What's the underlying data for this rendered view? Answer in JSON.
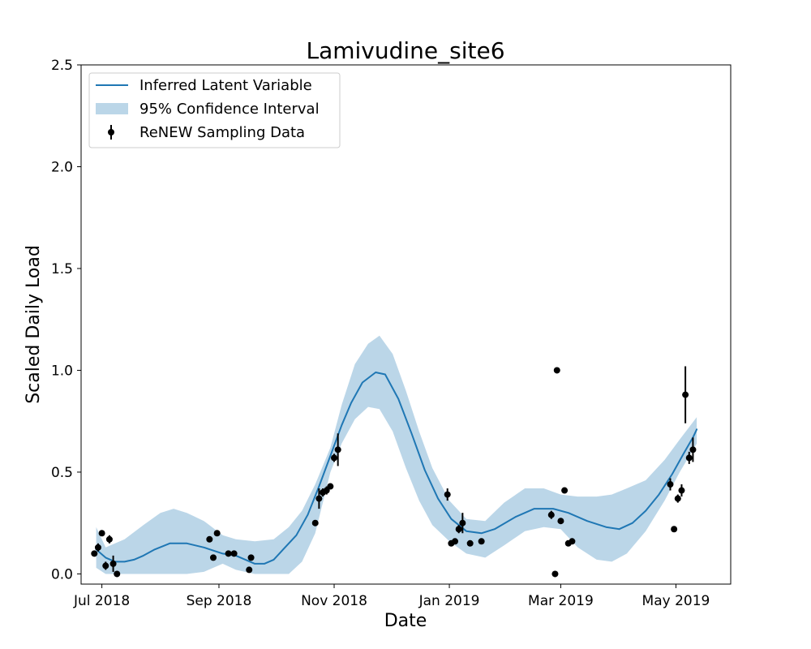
{
  "chart_data": {
    "type": "line",
    "title": "Lamivudine_site6",
    "xlabel": "Date",
    "ylabel": "Scaled Daily Load",
    "xlim": [
      "2018-06-20",
      "2019-05-30"
    ],
    "ylim": [
      -0.05,
      2.5
    ],
    "x_ticks": [
      {
        "date": "2018-07-01",
        "label": "Jul 2018"
      },
      {
        "date": "2018-09-01",
        "label": "Sep 2018"
      },
      {
        "date": "2018-11-01",
        "label": "Nov 2018"
      },
      {
        "date": "2019-01-01",
        "label": "Jan 2019"
      },
      {
        "date": "2019-03-01",
        "label": "Mar 2019"
      },
      {
        "date": "2019-05-01",
        "label": "May 2019"
      }
    ],
    "y_ticks": [
      {
        "value": 0.0,
        "label": "0.0"
      },
      {
        "value": 0.5,
        "label": "0.5"
      },
      {
        "value": 1.0,
        "label": "1.0"
      },
      {
        "value": 1.5,
        "label": "1.5"
      },
      {
        "value": 2.0,
        "label": "2.0"
      },
      {
        "value": 2.5,
        "label": "2.5"
      }
    ],
    "grid": false,
    "legend": {
      "position": "top-left",
      "entries": [
        {
          "label": "Inferred Latent Variable",
          "kind": "line"
        },
        {
          "label": "95% Confidence Interval",
          "kind": "band"
        },
        {
          "label": "ReNEW Sampling Data",
          "kind": "errorbar"
        }
      ]
    },
    "colors": {
      "line": "#1f77b4",
      "band": "#1f77b4",
      "points": "#000000"
    },
    "series": [
      {
        "name": "Inferred Latent Variable",
        "kind": "line",
        "points": [
          [
            "2018-06-28",
            0.12
          ],
          [
            "2018-07-03",
            0.08
          ],
          [
            "2018-07-08",
            0.06
          ],
          [
            "2018-07-13",
            0.06
          ],
          [
            "2018-07-18",
            0.07
          ],
          [
            "2018-07-23",
            0.09
          ],
          [
            "2018-07-29",
            0.12
          ],
          [
            "2018-08-06",
            0.15
          ],
          [
            "2018-08-15",
            0.15
          ],
          [
            "2018-08-24",
            0.13
          ],
          [
            "2018-09-03",
            0.1
          ],
          [
            "2018-09-10",
            0.09
          ],
          [
            "2018-09-15",
            0.07
          ],
          [
            "2018-09-20",
            0.05
          ],
          [
            "2018-09-25",
            0.05
          ],
          [
            "2018-09-30",
            0.07
          ],
          [
            "2018-10-05",
            0.12
          ],
          [
            "2018-10-12",
            0.19
          ],
          [
            "2018-10-18",
            0.29
          ],
          [
            "2018-10-24",
            0.43
          ],
          [
            "2018-10-30",
            0.58
          ],
          [
            "2018-11-05",
            0.73
          ],
          [
            "2018-11-10",
            0.84
          ],
          [
            "2018-11-16",
            0.94
          ],
          [
            "2018-11-23",
            0.99
          ],
          [
            "2018-11-28",
            0.98
          ],
          [
            "2018-12-05",
            0.86
          ],
          [
            "2018-12-12",
            0.69
          ],
          [
            "2018-12-19",
            0.51
          ],
          [
            "2018-12-26",
            0.37
          ],
          [
            "2019-01-02",
            0.27
          ],
          [
            "2019-01-10",
            0.21
          ],
          [
            "2019-01-18",
            0.2
          ],
          [
            "2019-01-25",
            0.22
          ],
          [
            "2019-02-05",
            0.28
          ],
          [
            "2019-02-15",
            0.32
          ],
          [
            "2019-02-25",
            0.32
          ],
          [
            "2019-03-05",
            0.3
          ],
          [
            "2019-03-15",
            0.26
          ],
          [
            "2019-03-25",
            0.23
          ],
          [
            "2019-04-01",
            0.22
          ],
          [
            "2019-04-08",
            0.25
          ],
          [
            "2019-04-15",
            0.31
          ],
          [
            "2019-04-22",
            0.39
          ],
          [
            "2019-04-29",
            0.49
          ],
          [
            "2019-05-05",
            0.59
          ],
          [
            "2019-05-10",
            0.67
          ],
          [
            "2019-05-12",
            0.71
          ]
        ]
      },
      {
        "name": "95% Confidence Interval",
        "kind": "band",
        "points": [
          [
            "2018-06-28",
            0.03,
            0.23
          ],
          [
            "2018-07-03",
            0.0,
            0.13
          ],
          [
            "2018-07-13",
            0.0,
            0.17
          ],
          [
            "2018-07-23",
            0.0,
            0.24
          ],
          [
            "2018-08-01",
            0.0,
            0.3
          ],
          [
            "2018-08-08",
            0.0,
            0.32
          ],
          [
            "2018-08-15",
            0.0,
            0.3
          ],
          [
            "2018-08-24",
            0.01,
            0.26
          ],
          [
            "2018-09-03",
            0.05,
            0.19
          ],
          [
            "2018-09-10",
            0.02,
            0.17
          ],
          [
            "2018-09-20",
            0.0,
            0.16
          ],
          [
            "2018-09-30",
            0.0,
            0.17
          ],
          [
            "2018-10-08",
            0.0,
            0.23
          ],
          [
            "2018-10-15",
            0.06,
            0.31
          ],
          [
            "2018-10-22",
            0.2,
            0.44
          ],
          [
            "2018-10-30",
            0.5,
            0.62
          ],
          [
            "2018-11-05",
            0.64,
            0.83
          ],
          [
            "2018-11-12",
            0.76,
            1.03
          ],
          [
            "2018-11-19",
            0.82,
            1.13
          ],
          [
            "2018-11-25",
            0.81,
            1.17
          ],
          [
            "2018-12-02",
            0.7,
            1.08
          ],
          [
            "2018-12-09",
            0.52,
            0.9
          ],
          [
            "2018-12-16",
            0.36,
            0.7
          ],
          [
            "2018-12-23",
            0.24,
            0.52
          ],
          [
            "2019-01-01",
            0.16,
            0.36
          ],
          [
            "2019-01-10",
            0.1,
            0.27
          ],
          [
            "2019-01-20",
            0.08,
            0.26
          ],
          [
            "2019-01-30",
            0.14,
            0.35
          ],
          [
            "2019-02-10",
            0.21,
            0.42
          ],
          [
            "2019-02-20",
            0.23,
            0.42
          ],
          [
            "2019-03-01",
            0.22,
            0.39
          ],
          [
            "2019-03-10",
            0.13,
            0.38
          ],
          [
            "2019-03-20",
            0.07,
            0.38
          ],
          [
            "2019-03-28",
            0.06,
            0.39
          ],
          [
            "2019-04-05",
            0.1,
            0.42
          ],
          [
            "2019-04-15",
            0.21,
            0.46
          ],
          [
            "2019-04-25",
            0.36,
            0.56
          ],
          [
            "2019-05-03",
            0.5,
            0.66
          ],
          [
            "2019-05-12",
            0.64,
            0.77
          ]
        ]
      },
      {
        "name": "ReNEW Sampling Data",
        "kind": "errorbar",
        "points": [
          [
            "2018-06-27",
            0.1,
            0.0
          ],
          [
            "2018-06-29",
            0.13,
            0.02
          ],
          [
            "2018-07-01",
            0.2,
            0.0
          ],
          [
            "2018-07-03",
            0.04,
            0.02
          ],
          [
            "2018-07-05",
            0.17,
            0.02
          ],
          [
            "2018-07-07",
            0.05,
            0.04
          ],
          [
            "2018-07-09",
            0.0,
            0.0
          ],
          [
            "2018-08-27",
            0.17,
            0.0
          ],
          [
            "2018-08-29",
            0.08,
            0.0
          ],
          [
            "2018-08-31",
            0.2,
            0.0
          ],
          [
            "2018-09-06",
            0.1,
            0.0
          ],
          [
            "2018-09-09",
            0.1,
            0.0
          ],
          [
            "2018-09-17",
            0.02,
            0.0
          ],
          [
            "2018-09-18",
            0.08,
            0.0
          ],
          [
            "2018-10-22",
            0.25,
            0.0
          ],
          [
            "2018-10-24",
            0.37,
            0.05
          ],
          [
            "2018-10-26",
            0.4,
            0.02
          ],
          [
            "2018-10-28",
            0.41,
            0.02
          ],
          [
            "2018-10-30",
            0.43,
            0.0
          ],
          [
            "2018-11-01",
            0.57,
            0.02
          ],
          [
            "2018-11-03",
            0.61,
            0.08
          ],
          [
            "2018-12-31",
            0.39,
            0.03
          ],
          [
            "2019-01-02",
            0.15,
            0.0
          ],
          [
            "2019-01-04",
            0.16,
            0.0
          ],
          [
            "2019-01-06",
            0.22,
            0.02
          ],
          [
            "2019-01-08",
            0.25,
            0.05
          ],
          [
            "2019-01-12",
            0.15,
            0.0
          ],
          [
            "2019-01-18",
            0.16,
            0.0
          ],
          [
            "2019-02-24",
            0.29,
            0.02
          ],
          [
            "2019-02-26",
            0.0,
            0.0
          ],
          [
            "2019-02-27",
            1.0,
            0.0
          ],
          [
            "2019-03-01",
            0.26,
            0.0
          ],
          [
            "2019-03-03",
            0.41,
            0.0
          ],
          [
            "2019-03-05",
            0.15,
            0.0
          ],
          [
            "2019-03-07",
            0.16,
            0.0
          ],
          [
            "2019-04-28",
            0.44,
            0.03
          ],
          [
            "2019-04-30",
            0.22,
            0.0
          ],
          [
            "2019-05-02",
            0.37,
            0.02
          ],
          [
            "2019-05-04",
            0.41,
            0.03
          ],
          [
            "2019-05-06",
            0.88,
            0.14
          ],
          [
            "2019-05-08",
            0.57,
            0.03
          ],
          [
            "2019-05-10",
            0.61,
            0.06
          ]
        ]
      }
    ]
  }
}
